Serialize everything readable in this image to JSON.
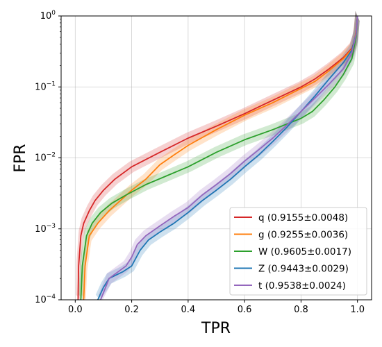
{
  "chart_data": {
    "type": "line",
    "xlabel": "TPR",
    "ylabel": "FPR",
    "xlim": [
      -0.05,
      1.05
    ],
    "ylim": [
      0.0001,
      1
    ],
    "yscale": "log",
    "grid": true,
    "legend_position": "bottom-right",
    "x_ticks": [
      {
        "value": 0.0,
        "label": "0.0"
      },
      {
        "value": 0.2,
        "label": "0.2"
      },
      {
        "value": 0.4,
        "label": "0.4"
      },
      {
        "value": 0.6,
        "label": "0.6"
      },
      {
        "value": 0.8,
        "label": "0.8"
      },
      {
        "value": 1.0,
        "label": "1.0"
      }
    ],
    "y_ticks": [
      {
        "value": 0.0001,
        "base": "10",
        "exp": "−4"
      },
      {
        "value": 0.001,
        "base": "10",
        "exp": "−3"
      },
      {
        "value": 0.01,
        "base": "10",
        "exp": "−2"
      },
      {
        "value": 0.1,
        "base": "10",
        "exp": "−1"
      },
      {
        "value": 1,
        "base": "10",
        "exp": "0"
      }
    ],
    "series": [
      {
        "name": "q (0.9155±0.0048)",
        "color": "#d62728",
        "points": [
          [
            0.01,
            0.0001
          ],
          [
            0.012,
            0.0003
          ],
          [
            0.02,
            0.0008
          ],
          [
            0.03,
            0.0012
          ],
          [
            0.05,
            0.0018
          ],
          [
            0.07,
            0.0025
          ],
          [
            0.1,
            0.0035
          ],
          [
            0.14,
            0.005
          ],
          [
            0.2,
            0.0075
          ],
          [
            0.3,
            0.012
          ],
          [
            0.4,
            0.019
          ],
          [
            0.5,
            0.028
          ],
          [
            0.6,
            0.042
          ],
          [
            0.7,
            0.065
          ],
          [
            0.8,
            0.1
          ],
          [
            0.85,
            0.13
          ],
          [
            0.9,
            0.18
          ],
          [
            0.95,
            0.26
          ],
          [
            0.98,
            0.35
          ],
          [
            0.99,
            0.45
          ],
          [
            0.995,
            0.6
          ],
          [
            1.0,
            1.0
          ]
        ]
      },
      {
        "name": "g (0.9255±0.0036)",
        "color": "#ff7f0e",
        "points": [
          [
            0.03,
            0.0001
          ],
          [
            0.035,
            0.0003
          ],
          [
            0.05,
            0.0008
          ],
          [
            0.08,
            0.0012
          ],
          [
            0.12,
            0.0018
          ],
          [
            0.16,
            0.0025
          ],
          [
            0.2,
            0.0035
          ],
          [
            0.25,
            0.005
          ],
          [
            0.3,
            0.008
          ],
          [
            0.35,
            0.011
          ],
          [
            0.4,
            0.015
          ],
          [
            0.5,
            0.025
          ],
          [
            0.6,
            0.04
          ],
          [
            0.7,
            0.06
          ],
          [
            0.8,
            0.095
          ],
          [
            0.85,
            0.12
          ],
          [
            0.9,
            0.17
          ],
          [
            0.95,
            0.25
          ],
          [
            0.98,
            0.34
          ],
          [
            0.99,
            0.45
          ],
          [
            0.995,
            0.6
          ],
          [
            1.0,
            1.0
          ]
        ]
      },
      {
        "name": "W (0.9605±0.0017)",
        "color": "#2ca02c",
        "points": [
          [
            0.02,
            0.0001
          ],
          [
            0.025,
            0.0003
          ],
          [
            0.04,
            0.0008
          ],
          [
            0.06,
            0.0012
          ],
          [
            0.09,
            0.0017
          ],
          [
            0.13,
            0.0023
          ],
          [
            0.18,
            0.003
          ],
          [
            0.25,
            0.0042
          ],
          [
            0.32,
            0.0055
          ],
          [
            0.4,
            0.0075
          ],
          [
            0.5,
            0.012
          ],
          [
            0.6,
            0.018
          ],
          [
            0.7,
            0.025
          ],
          [
            0.75,
            0.03
          ],
          [
            0.8,
            0.036
          ],
          [
            0.84,
            0.045
          ],
          [
            0.88,
            0.065
          ],
          [
            0.92,
            0.1
          ],
          [
            0.95,
            0.15
          ],
          [
            0.98,
            0.25
          ],
          [
            0.995,
            0.5
          ],
          [
            1.0,
            1.0
          ]
        ]
      },
      {
        "name": "Z (0.9443±0.0029)",
        "color": "#1f77b4",
        "points": [
          [
            0.08,
            0.0001
          ],
          [
            0.1,
            0.00015
          ],
          [
            0.12,
            0.0002
          ],
          [
            0.17,
            0.00025
          ],
          [
            0.2,
            0.0003
          ],
          [
            0.23,
            0.0005
          ],
          [
            0.26,
            0.0007
          ],
          [
            0.3,
            0.0009
          ],
          [
            0.35,
            0.0012
          ],
          [
            0.4,
            0.0017
          ],
          [
            0.45,
            0.0025
          ],
          [
            0.5,
            0.0035
          ],
          [
            0.55,
            0.005
          ],
          [
            0.6,
            0.0075
          ],
          [
            0.65,
            0.011
          ],
          [
            0.7,
            0.017
          ],
          [
            0.75,
            0.027
          ],
          [
            0.8,
            0.045
          ],
          [
            0.85,
            0.075
          ],
          [
            0.9,
            0.13
          ],
          [
            0.95,
            0.22
          ],
          [
            0.98,
            0.33
          ],
          [
            0.995,
            0.55
          ],
          [
            1.0,
            1.0
          ]
        ]
      },
      {
        "name": "t (0.9538±0.0024)",
        "color": "#9467bd",
        "points": [
          [
            0.09,
            0.0001
          ],
          [
            0.12,
            0.0002
          ],
          [
            0.18,
            0.0003
          ],
          [
            0.2,
            0.0004
          ],
          [
            0.22,
            0.0006
          ],
          [
            0.25,
            0.0008
          ],
          [
            0.3,
            0.0011
          ],
          [
            0.35,
            0.0015
          ],
          [
            0.4,
            0.002
          ],
          [
            0.45,
            0.003
          ],
          [
            0.5,
            0.0042
          ],
          [
            0.55,
            0.006
          ],
          [
            0.6,
            0.009
          ],
          [
            0.65,
            0.013
          ],
          [
            0.7,
            0.019
          ],
          [
            0.75,
            0.029
          ],
          [
            0.8,
            0.045
          ],
          [
            0.85,
            0.07
          ],
          [
            0.9,
            0.11
          ],
          [
            0.95,
            0.18
          ],
          [
            0.98,
            0.3
          ],
          [
            0.995,
            0.55
          ],
          [
            1.0,
            1.0
          ]
        ]
      }
    ]
  }
}
